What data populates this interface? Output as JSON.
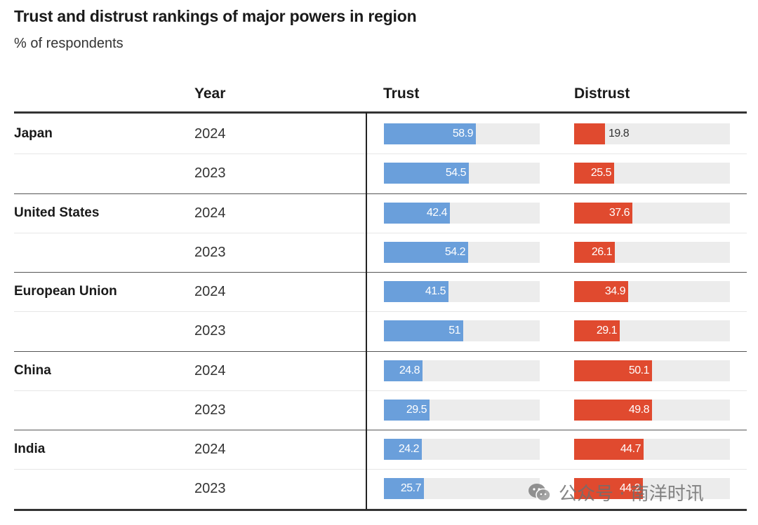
{
  "header": {
    "title": "Trust and distrust rankings of major powers in region",
    "subtitle": "% of respondents"
  },
  "columns": {
    "year": "Year",
    "trust": "Trust",
    "distrust": "Distrust"
  },
  "watermark": {
    "text": "公众号 · 南洋时讯",
    "icon": "wechat-icon"
  },
  "colors": {
    "trust": "#6a9fdb",
    "distrust": "#e04a2f",
    "track": "#ececec",
    "rule": "#222222"
  },
  "chart_data": {
    "type": "bar",
    "title": "Trust and distrust rankings of major powers in region",
    "subtitle": "% of respondents",
    "xlim": [
      0,
      100
    ],
    "series_names": [
      "Trust",
      "Distrust"
    ],
    "groups": [
      {
        "name": "Japan",
        "rows": [
          {
            "year": "2024",
            "trust": 58.9,
            "distrust": 19.8
          },
          {
            "year": "2023",
            "trust": 54.5,
            "distrust": 25.5
          }
        ]
      },
      {
        "name": "United States",
        "rows": [
          {
            "year": "2024",
            "trust": 42.4,
            "distrust": 37.6
          },
          {
            "year": "2023",
            "trust": 54.2,
            "distrust": 26.1
          }
        ]
      },
      {
        "name": "European Union",
        "rows": [
          {
            "year": "2024",
            "trust": 41.5,
            "distrust": 34.9
          },
          {
            "year": "2023",
            "trust": 51,
            "distrust": 29.1
          }
        ]
      },
      {
        "name": "China",
        "rows": [
          {
            "year": "2024",
            "trust": 24.8,
            "distrust": 50.1
          },
          {
            "year": "2023",
            "trust": 29.5,
            "distrust": 49.8
          }
        ]
      },
      {
        "name": "India",
        "rows": [
          {
            "year": "2024",
            "trust": 24.2,
            "distrust": 44.7
          },
          {
            "year": "2023",
            "trust": 25.7,
            "distrust": 44.2
          }
        ]
      }
    ]
  }
}
